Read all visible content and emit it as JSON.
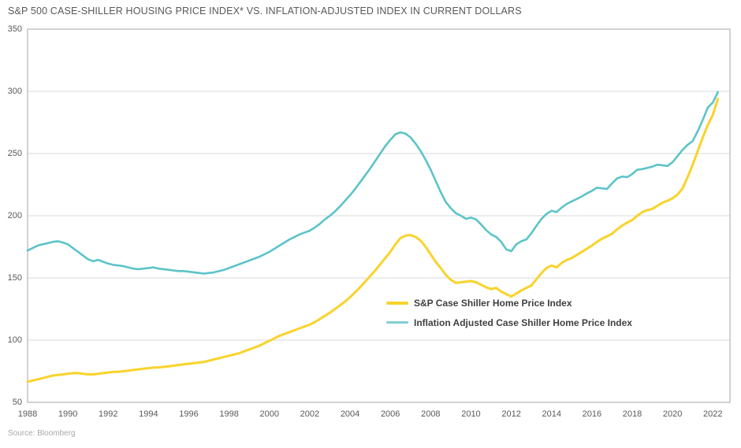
{
  "header": {
    "title": "S&P 500 CASE-SHILLER HOUSING PRICE INDEX* VS. INFLATION-ADJUSTED INDEX IN CURRENT DOLLARS"
  },
  "footer": {
    "source": "Source: Bloomberg"
  },
  "colors": {
    "nominal_line": "#F9D32B",
    "real_line": "#5CC4C8",
    "legend_real_swatch": "#7FCED2",
    "gridline": "#d9d9d9",
    "plot_border": "#b3b3b3",
    "tick_text": "#58595b"
  },
  "legend": {
    "items": [
      {
        "label": "S&P Case Shiller Home Price Index",
        "swatch_color": "#F9D32B",
        "swatch_height": 4
      },
      {
        "label": "Inflation Adjusted Case Shiller Home Price Index",
        "swatch_color": "#7FCED2",
        "swatch_height": 3
      }
    ]
  },
  "chart_data": {
    "type": "line",
    "title": "S&P 500 CASE-SHILLER HOUSING PRICE INDEX* VS. INFLATION-ADJUSTED INDEX IN CURRENT DOLLARS",
    "xlabel": "",
    "ylabel": "",
    "xlim": [
      1988,
      2022.85
    ],
    "ylim": [
      50,
      350
    ],
    "x_ticks": [
      1988,
      1990,
      1992,
      1994,
      1996,
      1998,
      2000,
      2002,
      2004,
      2006,
      2008,
      2010,
      2012,
      2014,
      2016,
      2018,
      2020,
      2022
    ],
    "y_ticks": [
      350,
      300,
      250,
      200,
      150,
      100,
      50
    ],
    "grid": "horizontal",
    "legend_position": "center",
    "x_start": 1988,
    "x_step": 0.25,
    "series": [
      {
        "name": "S&P Case Shiller Home Price Index",
        "color": "#F9D32B",
        "stroke_width": 3,
        "values": [
          66.5,
          67.5,
          68.5,
          69.5,
          70.5,
          71.5,
          72,
          72.5,
          73,
          73.5,
          73.5,
          73,
          72.5,
          72.5,
          73,
          73.5,
          74,
          74.5,
          74.5,
          75,
          75.5,
          76,
          76.5,
          77,
          77.5,
          78,
          78,
          78.5,
          79,
          79.5,
          80,
          80.5,
          81,
          81.5,
          82,
          82.5,
          83.5,
          84.5,
          85.5,
          86.5,
          87.5,
          88.5,
          89.5,
          91,
          92.5,
          94,
          95.5,
          97.5,
          99.5,
          101.5,
          103.5,
          105,
          106.5,
          108,
          109.5,
          111,
          112.5,
          114.5,
          117,
          119.5,
          122,
          125,
          128,
          131,
          134.5,
          138.5,
          142.5,
          147,
          151.5,
          156,
          161,
          166,
          171,
          177,
          182,
          184,
          184.5,
          183,
          180,
          175,
          169,
          163,
          158,
          152.5,
          148.5,
          146,
          146.5,
          147,
          147.5,
          146.5,
          144.5,
          142.5,
          141,
          142,
          139,
          137,
          135,
          137.5,
          140,
          142,
          144,
          149,
          154,
          158,
          160,
          158.5,
          162,
          164.5,
          166,
          168.5,
          171,
          173.5,
          176,
          179,
          181.5,
          183.5,
          185.5,
          189,
          192,
          194.5,
          196.5,
          200,
          203,
          204.5,
          205.5,
          208,
          210.5,
          212,
          214,
          217,
          222,
          231,
          241,
          252,
          263,
          273,
          281,
          294
        ]
      },
      {
        "name": "Inflation Adjusted Case Shiller Home Price Index",
        "color": "#5CC4C8",
        "stroke_width": 2.6,
        "values": [
          172,
          174,
          176,
          177,
          178,
          179,
          179.5,
          178.5,
          177,
          174,
          171,
          168,
          165,
          163.5,
          164.5,
          163,
          161.5,
          160.5,
          160,
          159.5,
          158.5,
          157.5,
          157,
          157.5,
          158,
          158.5,
          157.5,
          157,
          156.5,
          156,
          155.5,
          155.5,
          155,
          154.5,
          154,
          153.5,
          154,
          154.5,
          155.5,
          156.5,
          158,
          159.5,
          161,
          162.5,
          164,
          165.5,
          167,
          169,
          171,
          173.5,
          176,
          178.5,
          181,
          183,
          185,
          186.5,
          188,
          190.5,
          193.5,
          197,
          200,
          203.5,
          207.5,
          212,
          216.5,
          221.5,
          227,
          232.5,
          238,
          244,
          250,
          256,
          261,
          265.5,
          267,
          266,
          263,
          258,
          252,
          245,
          237,
          228,
          219,
          211,
          206,
          202,
          200,
          197.5,
          198.5,
          197,
          193,
          188.5,
          185,
          183,
          179,
          173,
          171.5,
          177,
          179.5,
          181,
          186,
          192,
          197.5,
          201.5,
          204,
          203,
          206.5,
          209.5,
          211.5,
          213.5,
          215.5,
          218,
          220,
          222.5,
          222,
          221.5,
          226,
          230,
          231.5,
          231,
          233.5,
          237,
          237.5,
          238.5,
          239.5,
          241,
          240.5,
          240,
          243,
          248,
          253,
          257,
          260,
          268,
          277,
          287,
          291,
          299.5
        ]
      }
    ]
  }
}
